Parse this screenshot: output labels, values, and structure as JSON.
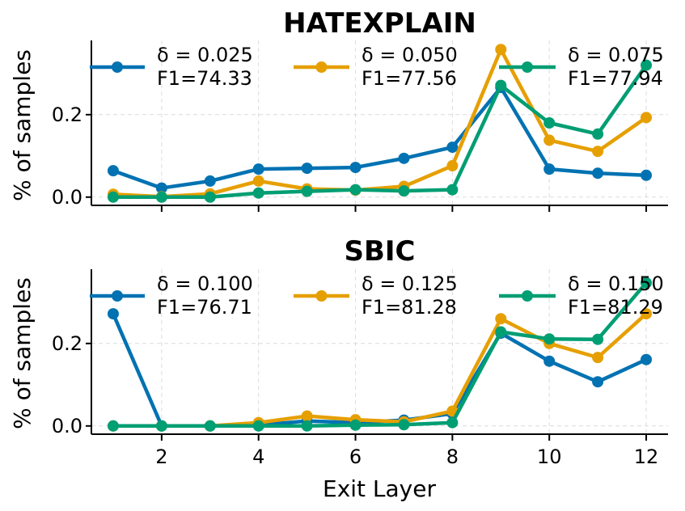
{
  "chart_data": [
    {
      "type": "line",
      "title": "HATEXPLAIN",
      "xlabel": "",
      "ylabel": "% of samples",
      "x": [
        1,
        2,
        3,
        4,
        5,
        6,
        7,
        8,
        9,
        10,
        11,
        12
      ],
      "xticks": [
        "2",
        "4",
        "6",
        "8",
        "10",
        "12"
      ],
      "yticks": [
        "0.0",
        "0.2"
      ],
      "ylim": [
        -0.02,
        0.38
      ],
      "grid": true,
      "series": [
        {
          "name": "δ = 0.025",
          "delta": "δ = 0.025",
          "f1": "F1=74.33",
          "color": "#0072b2",
          "values": [
            0.064,
            0.022,
            0.039,
            0.068,
            0.07,
            0.072,
            0.094,
            0.121,
            0.266,
            0.068,
            0.058,
            0.053
          ]
        },
        {
          "name": "δ = 0.050",
          "delta": "δ = 0.050",
          "f1": "F1=77.56",
          "color": "#e69f00",
          "values": [
            0.007,
            0.001,
            0.008,
            0.039,
            0.02,
            0.017,
            0.026,
            0.076,
            0.358,
            0.138,
            0.111,
            0.193
          ]
        },
        {
          "name": "δ = 0.075",
          "delta": "δ = 0.075",
          "f1": "F1=77.94",
          "color": "#009e73",
          "values": [
            0.0,
            0.0,
            0.0,
            0.01,
            0.014,
            0.018,
            0.015,
            0.018,
            0.271,
            0.18,
            0.153,
            0.32
          ]
        }
      ]
    },
    {
      "type": "line",
      "title": "SBIC",
      "xlabel": "Exit Layer",
      "ylabel": "% of samples",
      "x": [
        1,
        2,
        3,
        4,
        5,
        6,
        7,
        8,
        9,
        10,
        11,
        12
      ],
      "xticks": [
        "2",
        "4",
        "6",
        "8",
        "10",
        "12"
      ],
      "yticks": [
        "0.0",
        "0.2"
      ],
      "ylim": [
        -0.02,
        0.38
      ],
      "grid": true,
      "series": [
        {
          "name": "δ = 0.100",
          "delta": "δ = 0.100",
          "f1": "F1=76.71",
          "color": "#0072b2",
          "values": [
            0.272,
            0.0,
            0.0,
            0.002,
            0.012,
            0.008,
            0.014,
            0.03,
            0.225,
            0.157,
            0.107,
            0.161
          ]
        },
        {
          "name": "δ = 0.125",
          "delta": "δ = 0.125",
          "f1": "F1=81.28",
          "color": "#e69f00",
          "values": [
            0.0,
            0.0,
            0.0,
            0.008,
            0.024,
            0.015,
            0.01,
            0.036,
            0.26,
            0.2,
            0.166,
            0.272
          ]
        },
        {
          "name": "δ = 0.150",
          "delta": "δ = 0.150",
          "f1": "F1=81.29",
          "color": "#009e73",
          "values": [
            0.0,
            0.0,
            0.0,
            0.0,
            0.0,
            0.002,
            0.003,
            0.008,
            0.228,
            0.211,
            0.21,
            0.347
          ]
        }
      ]
    }
  ]
}
